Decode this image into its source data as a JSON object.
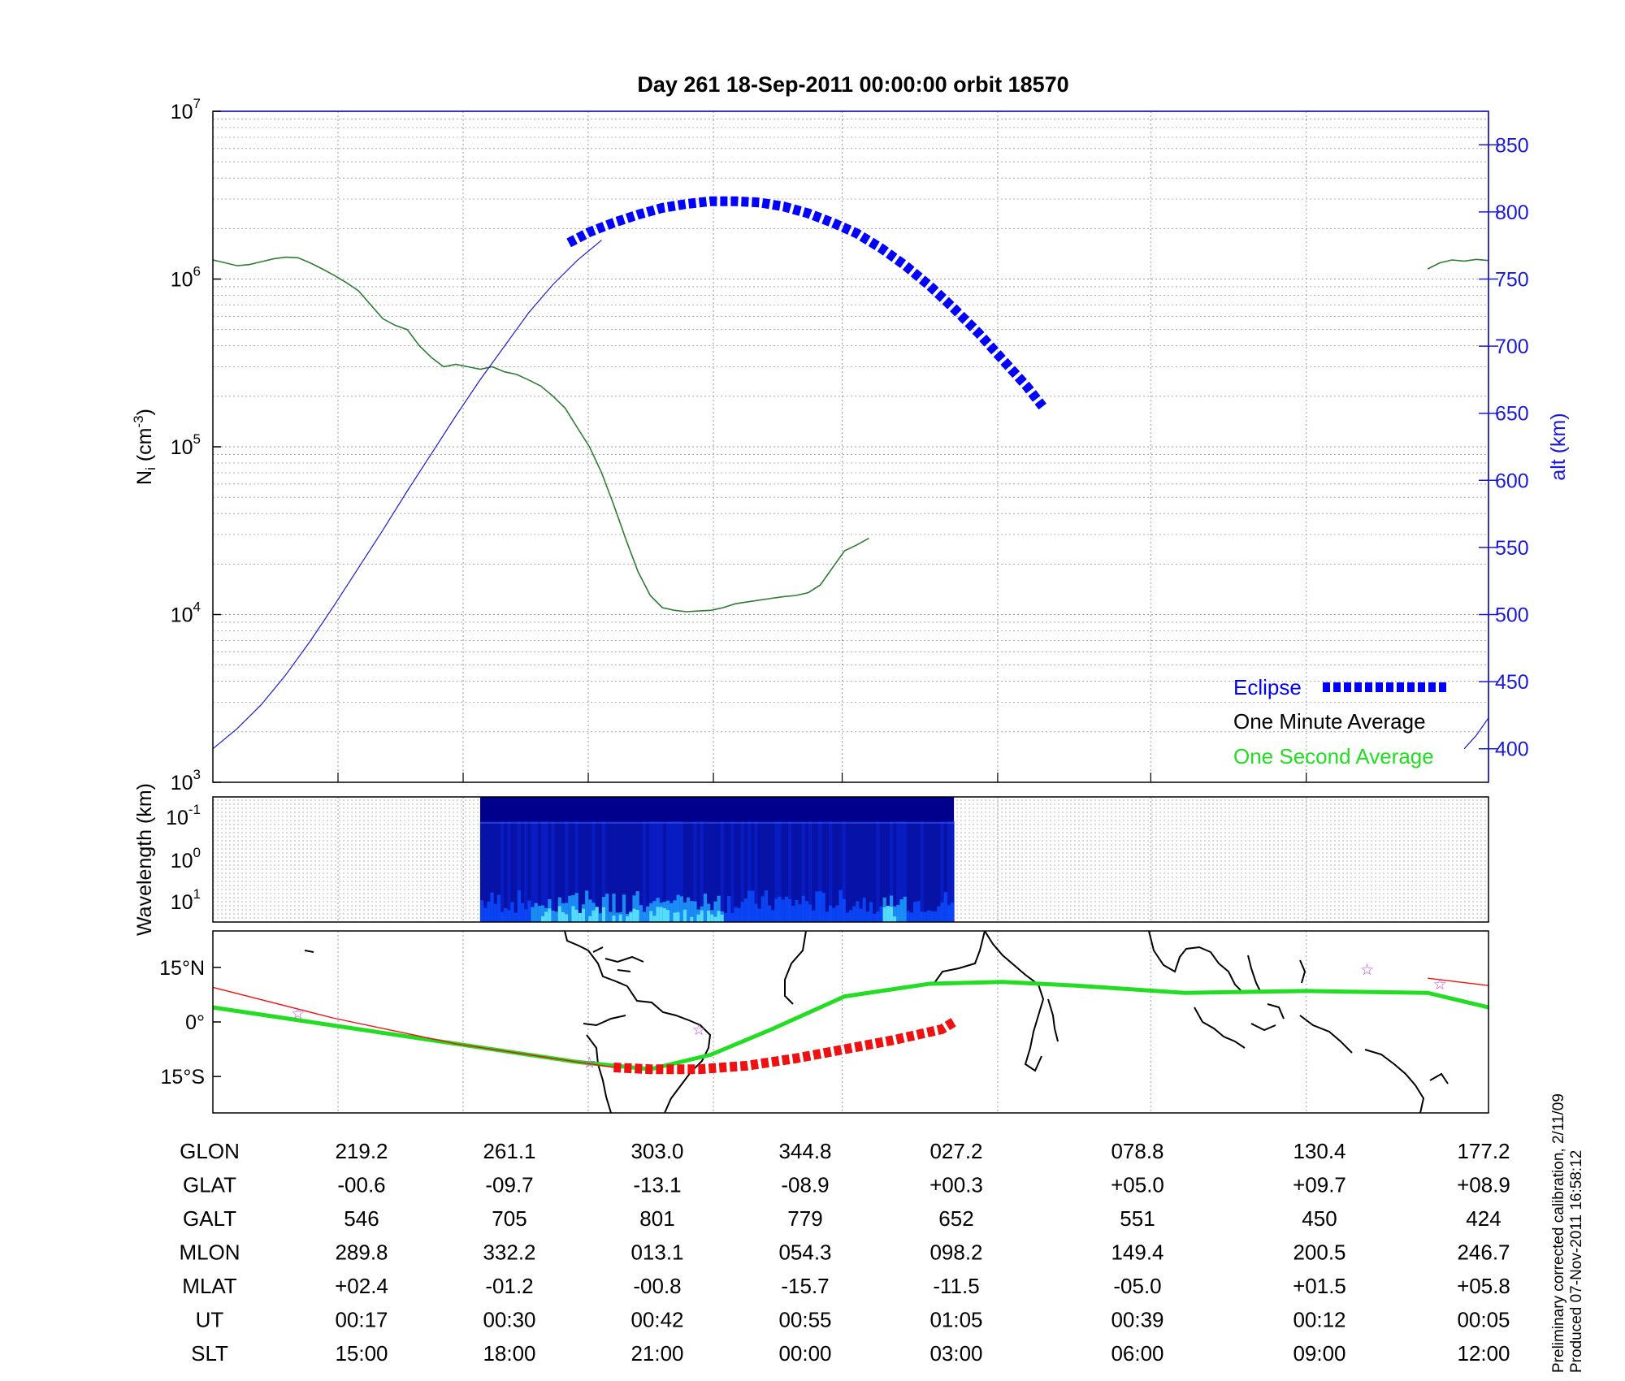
{
  "title": "Day 261  18-Sep-2011 00:00:00   orbit 18570",
  "colors": {
    "ni_line": "#2e7d32",
    "alt_line": "#1a1ad6",
    "eclipse": "#0000ff",
    "one_second": "#22dd22",
    "track_red": "#ee1111",
    "star": "#cc44cc",
    "axis_right": "#1a1ad6",
    "grid": "#9a9a9a"
  },
  "chart_data": [
    {
      "type": "line",
      "name": "density-panel",
      "ylabel_left": "N_i (cm^-3)",
      "ylabel_right": "alt (km)",
      "yscale_left": "log",
      "ylim_left": [
        1000,
        10000000
      ],
      "ylim_right": [
        375,
        875
      ],
      "yticks_left": [
        "10^3",
        "10^4",
        "10^5",
        "10^6",
        "10^7"
      ],
      "yticks_right": [
        400,
        450,
        500,
        550,
        600,
        650,
        700,
        750,
        800,
        850
      ],
      "grid": true,
      "legend_position": "bottom-right",
      "legend": [
        "Eclipse",
        "One Minute Average",
        "One Second Average"
      ],
      "series": [
        {
          "name": "One Minute Average",
          "axis": "left",
          "segments": [
            [
              [
                0,
                1300000
              ],
              [
                1,
                1250000
              ],
              [
                2,
                1200000
              ],
              [
                3,
                1220000
              ],
              [
                4,
                1270000
              ],
              [
                5,
                1320000
              ],
              [
                6,
                1350000
              ],
              [
                7,
                1340000
              ],
              [
                8,
                1250000
              ],
              [
                9,
                1150000
              ],
              [
                10,
                1050000
              ],
              [
                11,
                950000
              ],
              [
                12,
                850000
              ],
              [
                13,
                700000
              ],
              [
                14,
                580000
              ],
              [
                15,
                530000
              ],
              [
                16,
                500000
              ],
              [
                17,
                400000
              ],
              [
                18,
                340000
              ],
              [
                19,
                300000
              ],
              [
                20,
                310000
              ],
              [
                21,
                300000
              ],
              [
                22,
                290000
              ],
              [
                23,
                300000
              ],
              [
                24,
                280000
              ],
              [
                25,
                270000
              ],
              [
                26,
                250000
              ],
              [
                27,
                230000
              ],
              [
                28,
                200000
              ],
              [
                29,
                170000
              ],
              [
                30,
                130000
              ],
              [
                31,
                100000
              ],
              [
                32,
                70000
              ],
              [
                33,
                45000
              ],
              [
                34,
                28000
              ],
              [
                35,
                18000
              ],
              [
                36,
                13000
              ],
              [
                37,
                11000
              ],
              [
                38,
                10600
              ],
              [
                39,
                10400
              ],
              [
                40,
                10500
              ],
              [
                41,
                10600
              ],
              [
                42,
                11000
              ],
              [
                43,
                11600
              ],
              [
                44,
                11900
              ],
              [
                45,
                12200
              ],
              [
                46,
                12500
              ],
              [
                47,
                12800
              ],
              [
                48,
                13000
              ],
              [
                49,
                13500
              ],
              [
                50,
                15000
              ],
              [
                51,
                19000
              ],
              [
                52,
                24000
              ],
              [
                53,
                26000
              ],
              [
                54,
                28500
              ]
            ],
            [
              [
                100,
                1150000
              ],
              [
                101,
                1250000
              ],
              [
                102,
                1300000
              ],
              [
                103,
                1280000
              ],
              [
                104,
                1310000
              ],
              [
                105,
                1290000
              ]
            ]
          ]
        },
        {
          "name": "alt",
          "axis": "right",
          "segments": [
            [
              [
                0,
                400
              ],
              [
                2,
                415
              ],
              [
                4,
                433
              ],
              [
                6,
                455
              ],
              [
                8,
                480
              ],
              [
                10,
                507
              ],
              [
                12,
                535
              ],
              [
                14,
                563
              ],
              [
                16,
                592
              ],
              [
                18,
                620
              ],
              [
                20,
                648
              ],
              [
                22,
                675
              ],
              [
                24,
                700
              ],
              [
                26,
                725
              ],
              [
                28,
                746
              ],
              [
                30,
                764
              ],
              [
                32,
                779
              ]
            ],
            [
              [
                103,
                400
              ],
              [
                104,
                410
              ],
              [
                105,
                423
              ]
            ]
          ]
        },
        {
          "name": "Eclipse",
          "axis": "right",
          "points": [
            [
              29.3,
              777
            ],
            [
              31,
              785
            ],
            [
              33,
              792
            ],
            [
              35,
              798
            ],
            [
              37,
              803
            ],
            [
              39,
              806
            ],
            [
              41,
              808
            ],
            [
              43,
              808
            ],
            [
              45,
              807
            ],
            [
              47,
              804
            ],
            [
              49,
              799
            ],
            [
              51,
              792
            ],
            [
              53,
              784
            ],
            [
              55,
              773
            ],
            [
              57,
              760
            ],
            [
              59,
              745
            ],
            [
              61,
              728
            ],
            [
              63,
              710
            ],
            [
              65,
              690
            ],
            [
              67,
              670
            ],
            [
              68.3,
              655
            ]
          ]
        }
      ],
      "xlim": [
        0,
        105
      ]
    },
    {
      "type": "heatmap",
      "name": "wavelength-panel",
      "ylabel": "Wavelength (km)",
      "yticks": [
        "10^-1",
        "10^0",
        "10^1"
      ],
      "x_range_with_data": [
        22,
        61
      ],
      "colormap": [
        "#00005a",
        "#0000ff",
        "#00aaff",
        "#66ffff"
      ]
    },
    {
      "type": "line",
      "name": "map-panel",
      "yticks": [
        "15°N",
        "0°",
        "15°S"
      ],
      "ylim": [
        -25,
        25
      ],
      "series": [
        {
          "name": "One Second Average",
          "points": [
            [
              0,
              4
            ],
            [
              10,
              -1
            ],
            [
              20,
              -6
            ],
            [
              30,
              -11
            ],
            [
              36,
              -13
            ],
            [
              41,
              -9
            ],
            [
              46,
              -2
            ],
            [
              52,
              7
            ],
            [
              59,
              10.5
            ],
            [
              65,
              11
            ],
            [
              71,
              10
            ],
            [
              80,
              8
            ],
            [
              90,
              8.5
            ],
            [
              100,
              8
            ],
            [
              105,
              4
            ]
          ]
        },
        {
          "name": "track-red-thin",
          "points": [
            [
              0,
              9.5
            ],
            [
              10,
              1
            ],
            [
              20,
              -6
            ],
            [
              30,
              -11
            ],
            [
              33,
              -12.5
            ]
          ]
        },
        {
          "name": "track-red-thin-east",
          "points": [
            [
              100,
              12
            ],
            [
              105,
              10
            ]
          ]
        },
        {
          "name": "track-red-thick",
          "points": [
            [
              33,
              -12.5
            ],
            [
              36,
              -13
            ],
            [
              40,
              -13
            ],
            [
              44,
              -12
            ],
            [
              48,
              -10
            ],
            [
              52,
              -7.5
            ],
            [
              56,
              -5
            ],
            [
              60,
              -2
            ],
            [
              61,
              0
            ]
          ]
        },
        {
          "name": "stars",
          "points": [
            [
              7,
              2.5
            ],
            [
              31,
              -11
            ],
            [
              40,
              -2
            ],
            [
              95,
              14.5
            ],
            [
              101,
              10.5
            ]
          ]
        }
      ]
    }
  ],
  "table": {
    "row_labels": [
      "GLON",
      "GLAT",
      "GALT",
      "MLON",
      "MLAT",
      "UT",
      "SLT"
    ],
    "columns": [
      [
        "219.2",
        "-00.6",
        "546",
        "289.8",
        "+02.4",
        "00:17",
        "15:00"
      ],
      [
        "261.1",
        "-09.7",
        "705",
        "332.2",
        "-01.2",
        "00:30",
        "18:00"
      ],
      [
        "303.0",
        "-13.1",
        "801",
        "013.1",
        "-00.8",
        "00:42",
        "21:00"
      ],
      [
        "344.8",
        "-08.9",
        "779",
        "054.3",
        "-15.7",
        "00:55",
        "00:00"
      ],
      [
        "027.2",
        "+00.3",
        "652",
        "098.2",
        "-11.5",
        "01:05",
        "03:00"
      ],
      [
        "078.8",
        "+05.0",
        "551",
        "149.4",
        "-05.0",
        "00:39",
        "06:00"
      ],
      [
        "130.4",
        "+09.7",
        "450",
        "200.5",
        "+01.5",
        "00:12",
        "09:00"
      ],
      [
        "177.2",
        "+08.9",
        "424",
        "246.7",
        "+05.8",
        "00:05",
        "12:00"
      ]
    ]
  },
  "footnote": [
    "Preliminary corrected calibration, 2/11/09",
    "Produced 07-Nov-2011 16:58:12"
  ]
}
